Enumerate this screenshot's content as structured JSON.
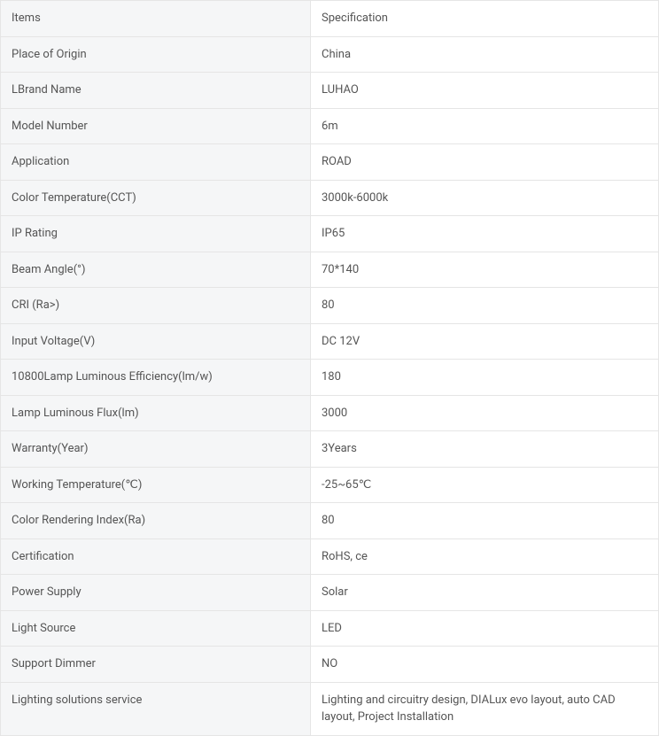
{
  "table": {
    "col_widths": [
      "350px",
      "auto"
    ],
    "border_color": "#e5e5e5",
    "label_bg": "#f5f6f7",
    "value_bg": "#ffffff",
    "text_color": "#555555",
    "font_size": 13,
    "rows": [
      {
        "item": "Items",
        "spec": "Specification"
      },
      {
        "item": "Place of Origin",
        "spec": "China"
      },
      {
        "item": "LBrand Name",
        "spec": "LUHAO"
      },
      {
        "item": "Model Number",
        "spec": "6m"
      },
      {
        "item": "Application",
        "spec": "ROAD"
      },
      {
        "item": "Color Temperature(CCT)",
        "spec": "3000k-6000k"
      },
      {
        "item": "IP Rating",
        "spec": "IP65"
      },
      {
        "item": "Beam Angle(°)",
        "spec": "70*140"
      },
      {
        "item": "CRI (Ra>)",
        "spec": "80"
      },
      {
        "item": "Input Voltage(V)",
        "spec": "DC 12V"
      },
      {
        "item": "10800Lamp Luminous Efficiency(lm/w)",
        "spec": "180"
      },
      {
        "item": "Lamp Luminous Flux(lm)",
        "spec": "3000"
      },
      {
        "item": "Warranty(Year)",
        "spec": "3Years"
      },
      {
        "item": "Working Temperature(℃)",
        "spec": "-25~65℃"
      },
      {
        "item": "Color Rendering Index(Ra)",
        "spec": "80"
      },
      {
        "item": "Certification",
        "spec": "RoHS, ce"
      },
      {
        "item": "Power Supply",
        "spec": "Solar"
      },
      {
        "item": "Light Source",
        "spec": "LED"
      },
      {
        "item": "Support Dimmer",
        "spec": "NO"
      },
      {
        "item": "Lighting solutions service",
        "spec": "Lighting and circuitry design, DIALux evo layout, auto CAD layout, Project Installation"
      }
    ]
  }
}
